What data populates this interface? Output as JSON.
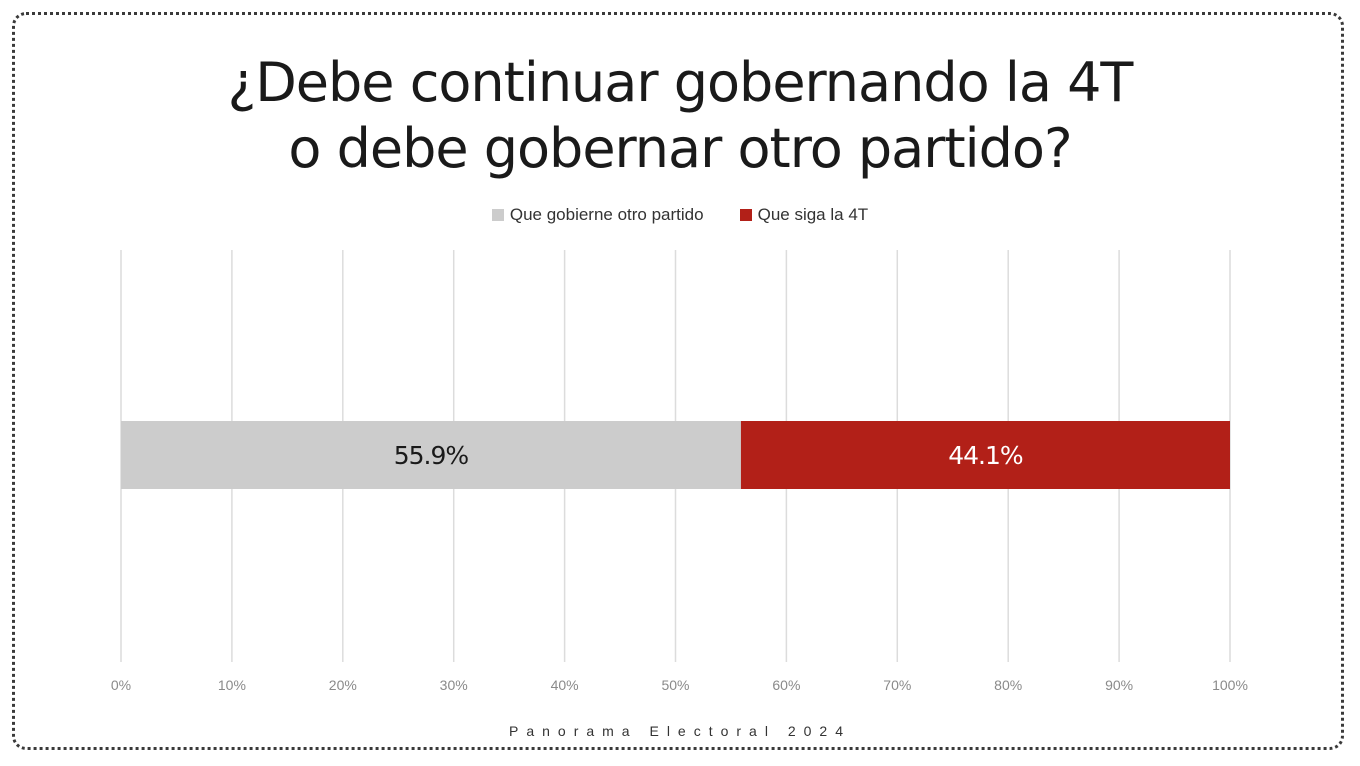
{
  "title": {
    "line1": "¿Debe continuar gobernando la 4T",
    "line2": "o debe gobernar otro partido?"
  },
  "legend": [
    {
      "label": "Que gobierne otro partido",
      "color": "#cccccc"
    },
    {
      "label": "Que siga la 4T",
      "color": "#b22018"
    }
  ],
  "footer": "Panorama Electoral 2024",
  "chart_data": {
    "type": "bar",
    "orientation": "horizontal",
    "stacked": true,
    "categories": [
      ""
    ],
    "series": [
      {
        "name": "Que gobierne otro partido",
        "values": [
          55.9
        ],
        "label": "55.9%",
        "color": "#cccccc",
        "label_color": "#1a1a1a"
      },
      {
        "name": "Que siga la 4T",
        "values": [
          44.1
        ],
        "label": "44.1%",
        "color": "#b22018",
        "label_color": "#ffffff"
      }
    ],
    "xlim": [
      0,
      100
    ],
    "xticks": [
      "0%",
      "10%",
      "20%",
      "30%",
      "40%",
      "50%",
      "60%",
      "70%",
      "80%",
      "90%",
      "100%"
    ],
    "grid": true,
    "legend_position": "top"
  }
}
